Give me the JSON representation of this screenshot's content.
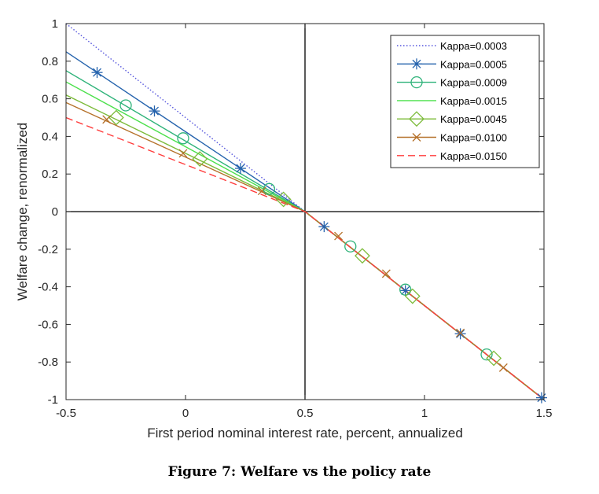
{
  "figure": {
    "caption": "Figure 7: Welfare vs the policy rate"
  },
  "chart_data": {
    "type": "line",
    "xlabel": "First period nominal interest rate, percent, annualized",
    "ylabel": "Welfare change, renormalized",
    "xlim": [
      -0.5,
      1.5
    ],
    "ylim": [
      -1,
      1
    ],
    "xticks": [
      -0.5,
      0,
      0.5,
      1,
      1.5
    ],
    "xtick_labels": [
      "-0.5",
      "0",
      "0.5",
      "1",
      "1.5"
    ],
    "yticks": [
      -1,
      -0.8,
      -0.6,
      -0.4,
      -0.2,
      0,
      0.2,
      0.4,
      0.6,
      0.8,
      1
    ],
    "ytick_labels": [
      "-1",
      "-0.8",
      "-0.6",
      "-0.4",
      "-0.2",
      "0",
      "0.2",
      "0.4",
      "0.6",
      "0.8",
      "1"
    ],
    "reference_lines": {
      "x": 0.5,
      "y": 0
    },
    "legend_position": "top-right",
    "series": [
      {
        "name": "Kappa=0.0003",
        "color": "#5555dd",
        "dash": "dotted",
        "marker": "none",
        "points": [
          [
            -0.5,
            1.0
          ],
          [
            0.5,
            0.0
          ],
          [
            1.5,
            -1.0
          ]
        ],
        "markers": []
      },
      {
        "name": "Kappa=0.0005",
        "color": "#2563ad",
        "dash": "solid",
        "marker": "asterisk",
        "points": [
          [
            -0.5,
            0.85
          ],
          [
            0.5,
            0.0
          ],
          [
            1.5,
            -1.0
          ]
        ],
        "markers": [
          [
            -0.37,
            0.74
          ],
          [
            -0.13,
            0.535
          ],
          [
            0.23,
            0.23
          ],
          [
            0.58,
            -0.08
          ],
          [
            0.92,
            -0.42
          ],
          [
            1.15,
            -0.65
          ],
          [
            1.49,
            -0.99
          ]
        ]
      },
      {
        "name": "Kappa=0.0009",
        "color": "#2fb37a",
        "dash": "solid",
        "marker": "circle",
        "points": [
          [
            -0.5,
            0.75
          ],
          [
            0.5,
            0.0
          ],
          [
            1.5,
            -1.0
          ]
        ],
        "markers": [
          [
            -0.25,
            0.565
          ],
          [
            -0.01,
            0.39
          ],
          [
            0.35,
            0.12
          ],
          [
            0.69,
            -0.185
          ],
          [
            0.92,
            -0.415
          ],
          [
            1.26,
            -0.76
          ]
        ]
      },
      {
        "name": "Kappa=0.0015",
        "color": "#4ce04c",
        "dash": "solid",
        "marker": "none",
        "points": [
          [
            -0.5,
            0.69
          ],
          [
            0.5,
            0.0
          ],
          [
            1.5,
            -1.0
          ]
        ],
        "markers": []
      },
      {
        "name": "Kappa=0.0045",
        "color": "#7cbb3a",
        "dash": "solid",
        "marker": "diamond",
        "points": [
          [
            -0.5,
            0.62
          ],
          [
            0.5,
            0.0
          ],
          [
            1.5,
            -1.0
          ]
        ],
        "markers": [
          [
            -0.29,
            0.5
          ],
          [
            0.06,
            0.28
          ],
          [
            0.41,
            0.065
          ],
          [
            0.74,
            -0.235
          ],
          [
            0.95,
            -0.45
          ],
          [
            1.29,
            -0.78
          ]
        ]
      },
      {
        "name": "Kappa=0.0100",
        "color": "#b5712a",
        "dash": "solid",
        "marker": "x",
        "points": [
          [
            -0.5,
            0.58
          ],
          [
            0.5,
            0.0
          ],
          [
            1.5,
            -1.0
          ]
        ],
        "markers": [
          [
            -0.33,
            0.49
          ],
          [
            -0.01,
            0.31
          ],
          [
            0.32,
            0.11
          ],
          [
            0.64,
            -0.13
          ],
          [
            0.84,
            -0.33
          ],
          [
            1.15,
            -0.645
          ],
          [
            1.33,
            -0.83
          ]
        ]
      },
      {
        "name": "Kappa=0.0150",
        "color": "#ff3b3b",
        "dash": "dashed",
        "marker": "none",
        "points": [
          [
            -0.5,
            0.5
          ],
          [
            0.5,
            0.0
          ],
          [
            1.5,
            -1.0
          ]
        ],
        "markers": []
      }
    ]
  }
}
